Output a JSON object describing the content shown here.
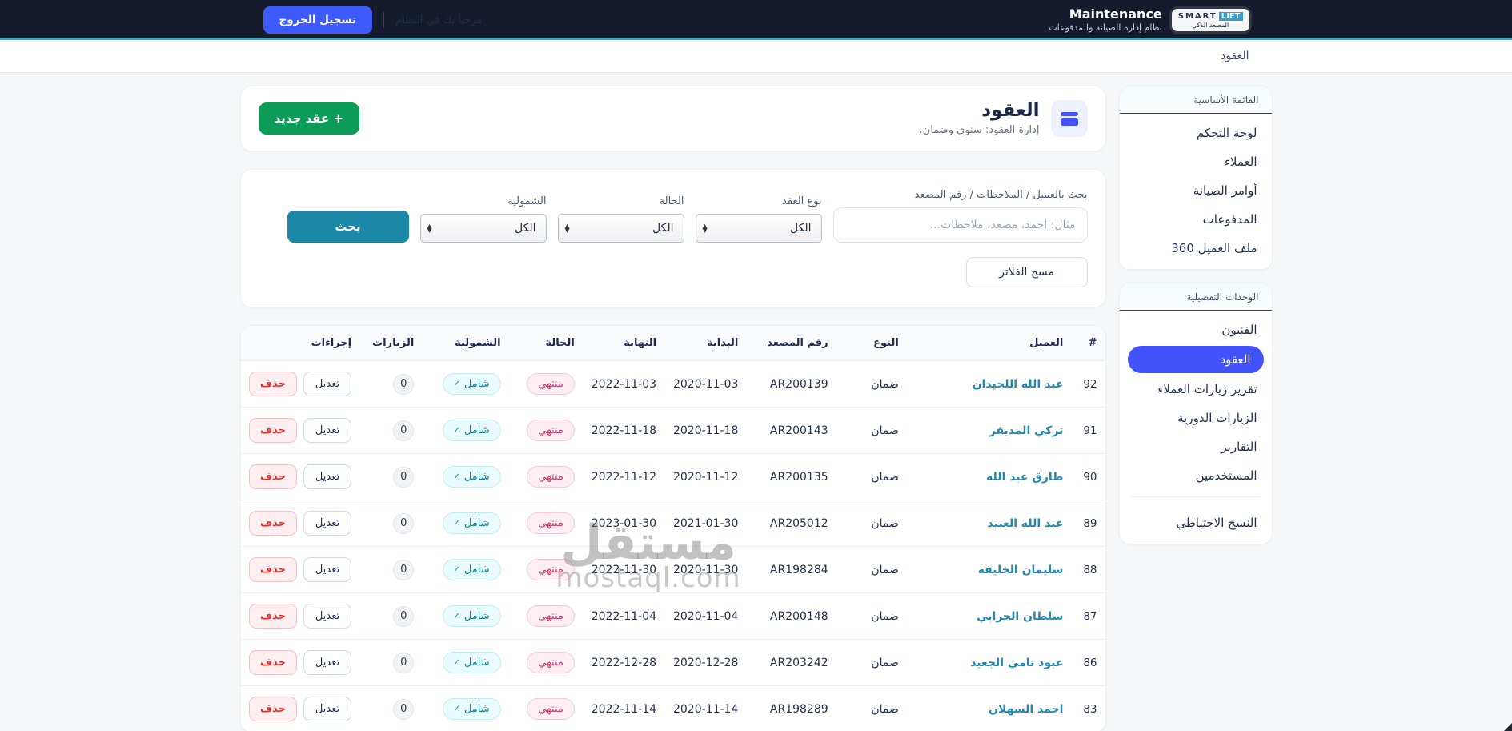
{
  "navbar": {
    "app_title": "Maintenance",
    "app_subtitle": "نظام إدارة الصيانة والمدفوعات",
    "logo": {
      "line1_a": "SMART",
      "line1_b": "LIFT",
      "line2": "المصعد الذكي"
    },
    "faint_text": "مرحباً بك في النظام",
    "logout_label": "تسجيل الخروج"
  },
  "breadcrumb": {
    "current": "العقود"
  },
  "sidebar": {
    "primary": {
      "title": "القائمة الأساسية",
      "items": [
        {
          "key": "dashboard",
          "label": "لوحة التحكم",
          "active": false
        },
        {
          "key": "clients",
          "label": "العملاء",
          "active": false
        },
        {
          "key": "maintenance-orders",
          "label": "أوامر الصيانة",
          "active": false
        },
        {
          "key": "payments",
          "label": "المدفوعات",
          "active": false
        },
        {
          "key": "client-360",
          "label": "ملف العميل 360",
          "active": false
        }
      ]
    },
    "detailed": {
      "title": "الوحدات التفصيلية",
      "items": [
        {
          "key": "technicians",
          "label": "الفنيون",
          "active": false
        },
        {
          "key": "contracts",
          "label": "العقود",
          "active": true
        },
        {
          "key": "client-visits-report",
          "label": "تقرير زيارات العملاء",
          "active": false
        },
        {
          "key": "periodic-visits",
          "label": "الزيارات الدورية",
          "active": false
        },
        {
          "key": "reports",
          "label": "التقارير",
          "active": false
        },
        {
          "key": "users",
          "label": "المستخدمين",
          "active": false
        }
      ],
      "footer_items": [
        {
          "key": "backup",
          "label": "النسخ الاحتياطي",
          "active": false
        }
      ]
    }
  },
  "page_header": {
    "title": "العقود",
    "subtitle": "إدارة العقود: سنوي وضمان.",
    "new_button": "+ عقد جديد"
  },
  "filters": {
    "search": {
      "label": "بحث بالعميل / الملاحظات / رقم المصعد",
      "placeholder": "مثال: أحمد، مصعد، ملاحظات...",
      "value": ""
    },
    "contract_type": {
      "label": "نوع العقد",
      "value": "الكل"
    },
    "status": {
      "label": "الحالة",
      "value": "الكل"
    },
    "coverage": {
      "label": "الشمولية",
      "value": "الكل"
    },
    "search_button": "بحث",
    "clear_button": "مسح الفلاتر"
  },
  "table": {
    "headers": [
      "#",
      "العميل",
      "النوع",
      "رقم المصعد",
      "البداية",
      "النهاية",
      "الحالة",
      "الشمولية",
      "الزيارات",
      "إجراءات"
    ],
    "status_badge": "منتهي",
    "coverage_badge": "شامل",
    "coverage_check": "✓",
    "edit_label": "تعديل",
    "delete_label": "حذف",
    "rows": [
      {
        "id": "92",
        "client": "عبد الله اللحيدان",
        "type": "ضمان",
        "elevator": "AR200139",
        "start": "2020-11-03",
        "end": "2022-11-03",
        "visits": "0"
      },
      {
        "id": "91",
        "client": "تركي المديفر",
        "type": "ضمان",
        "elevator": "AR200143",
        "start": "2020-11-18",
        "end": "2022-11-18",
        "visits": "0"
      },
      {
        "id": "90",
        "client": "طارق عبد الله",
        "type": "ضمان",
        "elevator": "AR200135",
        "start": "2020-11-12",
        "end": "2022-11-12",
        "visits": "0"
      },
      {
        "id": "89",
        "client": "عبد الله العبيد",
        "type": "ضمان",
        "elevator": "AR205012",
        "start": "2021-01-30",
        "end": "2023-01-30",
        "visits": "0"
      },
      {
        "id": "88",
        "client": "سليمان الخليفة",
        "type": "ضمان",
        "elevator": "AR198284",
        "start": "2020-11-30",
        "end": "2022-11-30",
        "visits": "0"
      },
      {
        "id": "87",
        "client": "سلطان الحرابي",
        "type": "ضمان",
        "elevator": "AR200148",
        "start": "2020-11-04",
        "end": "2022-11-04",
        "visits": "0"
      },
      {
        "id": "86",
        "client": "عبود نامي الجعيد",
        "type": "ضمان",
        "elevator": "AR203242",
        "start": "2020-12-28",
        "end": "2022-12-28",
        "visits": "0"
      },
      {
        "id": "83",
        "client": "احمد السهلان",
        "type": "ضمان",
        "elevator": "AR198289",
        "start": "2020-11-14",
        "end": "2022-11-14",
        "visits": "0"
      }
    ]
  },
  "watermark": {
    "line1": "مستقل",
    "line2": "mostaql.com"
  },
  "colors": {
    "navbar_bg": "#151b2c",
    "cyan_line": "#26aed4",
    "logout_blue": "#3d5afe",
    "active_nav_blue": "#4353fb",
    "new_button_green": "#0b9d58",
    "search_button_teal": "#1b88a8",
    "client_link_teal": "#2386ad",
    "status_badge_pink": "#d6336c",
    "delete_red": "#e03131"
  }
}
